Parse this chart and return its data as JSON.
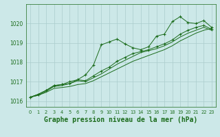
{
  "background_color": "#cce8e8",
  "grid_color": "#aacccc",
  "line_color": "#1a6b1a",
  "xlabel": "Graphe pression niveau de la mer (hPa)",
  "xlim": [
    -0.5,
    23.5
  ],
  "ylim": [
    1015.7,
    1021.0
  ],
  "yticks": [
    1016,
    1017,
    1018,
    1019,
    1020
  ],
  "xticks": [
    0,
    1,
    2,
    3,
    4,
    5,
    6,
    7,
    8,
    9,
    10,
    11,
    12,
    13,
    14,
    15,
    16,
    17,
    18,
    19,
    20,
    21,
    22,
    23
  ],
  "series1_x": [
    0,
    1,
    2,
    3,
    4,
    5,
    6,
    7,
    8,
    9,
    10,
    11,
    12,
    13,
    14,
    15,
    16,
    17,
    18,
    19,
    20,
    21,
    22,
    23
  ],
  "series1_y": [
    1016.2,
    1016.35,
    1016.55,
    1016.8,
    1016.85,
    1016.9,
    1017.1,
    1017.35,
    1017.85,
    1018.9,
    1019.05,
    1019.2,
    1018.95,
    1018.75,
    1018.65,
    1018.8,
    1019.35,
    1019.45,
    1020.1,
    1020.35,
    1020.05,
    1020.0,
    1020.15,
    1019.8
  ],
  "series2_x": [
    0,
    1,
    2,
    3,
    4,
    5,
    6,
    7,
    8,
    9,
    10,
    11,
    12,
    13,
    14,
    15,
    16,
    17,
    18,
    19,
    20,
    21,
    22,
    23
  ],
  "series2_y": [
    1016.2,
    1016.35,
    1016.55,
    1016.8,
    1016.85,
    1017.0,
    1017.1,
    1017.05,
    1017.3,
    1017.55,
    1017.75,
    1018.05,
    1018.25,
    1018.45,
    1018.55,
    1018.65,
    1018.8,
    1018.95,
    1019.15,
    1019.45,
    1019.65,
    1019.8,
    1019.9,
    1019.7
  ],
  "series3_x": [
    0,
    1,
    2,
    3,
    4,
    5,
    6,
    7,
    8,
    9,
    10,
    11,
    12,
    13,
    14,
    15,
    16,
    17,
    18,
    19,
    20,
    21,
    22,
    23
  ],
  "series3_y": [
    1016.2,
    1016.3,
    1016.5,
    1016.75,
    1016.8,
    1016.9,
    1017.05,
    1017.0,
    1017.2,
    1017.4,
    1017.65,
    1017.9,
    1018.1,
    1018.3,
    1018.5,
    1018.6,
    1018.7,
    1018.85,
    1019.05,
    1019.3,
    1019.5,
    1019.65,
    1019.8,
    1019.65
  ],
  "series4_x": [
    0,
    1,
    2,
    3,
    4,
    5,
    6,
    7,
    8,
    9,
    10,
    11,
    12,
    13,
    14,
    15,
    16,
    17,
    18,
    19,
    20,
    21,
    22,
    23
  ],
  "series4_y": [
    1016.2,
    1016.3,
    1016.45,
    1016.65,
    1016.7,
    1016.75,
    1016.85,
    1016.9,
    1017.05,
    1017.25,
    1017.45,
    1017.65,
    1017.85,
    1018.05,
    1018.2,
    1018.35,
    1018.5,
    1018.65,
    1018.85,
    1019.1,
    1019.3,
    1019.5,
    1019.65,
    1019.75
  ]
}
